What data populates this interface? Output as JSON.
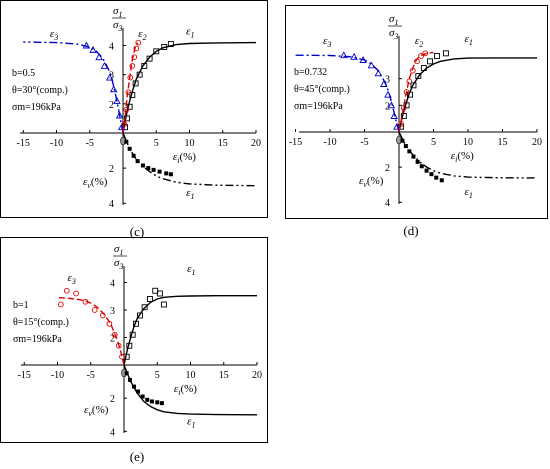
{
  "panels": [
    {
      "caption": "(c)",
      "annotation": [
        "b=0.5",
        "θ=30°(comp.)",
        "σm=196kPa"
      ],
      "eps1_label": "ε1",
      "eps2_label": "ε2",
      "eps3_label": "ε3",
      "epsv_axis_label": "εv(%)",
      "epsv_curve_label": "ε1",
      "y_axis_label_top": "σ1",
      "y_axis_label_bottom": "σ3",
      "x_axis_label": "εi(%)"
    },
    {
      "caption": "(d)",
      "annotation": [
        "b=0.732",
        "θ=45°(comp.)",
        "σm=196kPa"
      ],
      "eps1_label": "ε1",
      "eps2_label": "ε2",
      "eps3_label": "ε3",
      "epsv_axis_label": "εv(%)",
      "epsv_curve_label": "ε1",
      "y_axis_label_top": "σ1",
      "y_axis_label_bottom": "σ3",
      "x_axis_label": "εi(%)"
    },
    {
      "caption": "(e)",
      "annotation": [
        "b=1",
        "θ=15°(comp.)",
        "σm=196kPa"
      ],
      "eps1_label": "ε1",
      "eps2_label": "",
      "eps3_label": "ε3",
      "epsv_axis_label": "εv(%)",
      "epsv_curve_label": "ε1",
      "y_axis_label_top": "σ1",
      "y_axis_label_bottom": "σ3",
      "x_axis_label": "εi(%)"
    }
  ],
  "chart_data": [
    {
      "type": "line",
      "caption": "(c)",
      "x_ticks": [
        -15,
        -10,
        -5,
        0,
        5,
        10,
        15,
        20
      ],
      "y_ticks_upper": [
        2,
        3,
        4
      ],
      "y_ticks_lower": [
        2,
        4
      ],
      "xlim": [
        -15,
        20
      ],
      "ylim_stress": [
        1,
        4.5
      ],
      "ylim_volumetric": [
        0,
        4
      ],
      "series": [
        {
          "name": "ε1",
          "kind": "fitted-curve",
          "color": "#000000",
          "dash": "solid",
          "axis": "stress",
          "x": [
            0,
            0.5,
            1,
            1.5,
            2,
            3,
            4,
            5,
            6,
            8,
            10,
            14,
            20
          ],
          "y": [
            1,
            1.6,
            2.1,
            2.5,
            2.85,
            3.3,
            3.6,
            3.8,
            3.92,
            4.03,
            4.07,
            4.09,
            4.1
          ]
        },
        {
          "name": "",
          "kind": "data-open-square",
          "color": "#000000",
          "axis": "stress",
          "x": [
            0.3,
            0.6,
            1,
            1.4,
            1.9,
            2.5,
            3.2,
            4,
            5,
            6.2,
            7.2
          ],
          "y": [
            1.2,
            1.5,
            1.9,
            2.3,
            2.7,
            3.0,
            3.3,
            3.55,
            3.8,
            3.95,
            4.05
          ]
        },
        {
          "name": "ε3",
          "kind": "fitted-curve",
          "color": "#0000cc",
          "dash": "dash-dot",
          "axis": "stress",
          "x": [
            0,
            -0.5,
            -1,
            -1.5,
            -2,
            -3,
            -4,
            -5,
            -7,
            -10,
            -15
          ],
          "y": [
            1,
            1.6,
            2.2,
            2.7,
            3.1,
            3.55,
            3.8,
            3.95,
            4.05,
            4.1,
            4.12
          ]
        },
        {
          "name": "",
          "kind": "data-open-triangle",
          "color": "#0000cc",
          "axis": "stress",
          "x": [
            -0.2,
            -0.5,
            -0.9,
            -1.4,
            -2,
            -2.8,
            -3.6,
            -4.5,
            -5.5
          ],
          "y": [
            1.2,
            1.6,
            2.1,
            2.5,
            2.9,
            3.3,
            3.6,
            3.85,
            4.0
          ]
        },
        {
          "name": "ε2",
          "kind": "fitted-curve",
          "color": "#dd0000",
          "dash": "dashed",
          "axis": "stress",
          "x": [
            0,
            0.3,
            0.6,
            1,
            1.4,
            1.8,
            2.2
          ],
          "y": [
            1,
            1.5,
            2.2,
            2.9,
            3.5,
            3.9,
            4.1
          ]
        },
        {
          "name": "",
          "kind": "data-open-circle",
          "color": "#dd0000",
          "axis": "stress",
          "x": [
            0.2,
            0.5,
            0.8,
            1.1,
            1.4,
            1.7,
            2.0,
            2.3
          ],
          "y": [
            1.3,
            1.8,
            2.4,
            2.9,
            3.3,
            3.6,
            3.9,
            4.1
          ]
        },
        {
          "name": "ε1",
          "kind": "fitted-curve",
          "color": "#000000",
          "dash": "dash-dot-dot",
          "axis": "volumetric",
          "x": [
            0,
            1,
            2,
            3,
            4,
            5,
            6,
            8,
            10,
            14,
            20
          ],
          "y": [
            0,
            0.9,
            1.5,
            1.9,
            2.2,
            2.45,
            2.6,
            2.8,
            2.9,
            2.97,
            3.0
          ]
        },
        {
          "name": "",
          "kind": "data-filled-square",
          "color": "#000000",
          "axis": "volumetric",
          "x": [
            0.5,
            1,
            1.6,
            2.2,
            3,
            3.8,
            4.6,
            5.5,
            6.5,
            7.2
          ],
          "y": [
            0.5,
            0.9,
            1.3,
            1.6,
            1.85,
            2.0,
            2.1,
            2.2,
            2.3,
            2.35
          ]
        }
      ]
    },
    {
      "type": "line",
      "caption": "(d)",
      "x_ticks": [
        -15,
        -10,
        -5,
        0,
        5,
        10,
        15,
        20
      ],
      "y_ticks_upper": [
        2,
        3
      ],
      "y_ticks_lower": [
        2,
        4
      ],
      "xlim": [
        -15,
        20
      ],
      "ylim_stress": [
        1,
        4.5
      ],
      "ylim_volumetric": [
        0,
        4
      ],
      "series": [
        {
          "name": "ε1",
          "kind": "fitted-curve",
          "color": "#000000",
          "dash": "solid",
          "axis": "stress",
          "x": [
            0,
            0.5,
            1,
            1.5,
            2,
            3,
            4,
            5,
            6,
            8,
            10,
            14,
            20
          ],
          "y": [
            1,
            1.6,
            2.05,
            2.45,
            2.75,
            3.15,
            3.4,
            3.55,
            3.65,
            3.74,
            3.77,
            3.78,
            3.78
          ]
        },
        {
          "name": "",
          "kind": "data-open-square",
          "color": "#000000",
          "axis": "stress",
          "x": [
            0.3,
            0.7,
            1.1,
            1.6,
            2.1,
            2.8,
            3.6,
            4.5,
            5.5,
            6.8
          ],
          "y": [
            1.2,
            1.6,
            2.0,
            2.4,
            2.75,
            3.1,
            3.4,
            3.65,
            3.85,
            3.95
          ]
        },
        {
          "name": "ε3",
          "kind": "fitted-curve",
          "color": "#0000cc",
          "dash": "dash-dot",
          "axis": "stress",
          "x": [
            0,
            -0.5,
            -1,
            -1.5,
            -2,
            -3,
            -4,
            -5,
            -7,
            -10,
            -15
          ],
          "y": [
            1,
            1.5,
            2.05,
            2.5,
            2.85,
            3.3,
            3.55,
            3.7,
            3.82,
            3.87,
            3.88
          ]
        },
        {
          "name": "",
          "kind": "data-open-triangle",
          "color": "#0000cc",
          "axis": "stress",
          "x": [
            -0.3,
            -0.7,
            -1.1,
            -1.6,
            -2.2,
            -3,
            -4,
            -5.2,
            -6.5,
            -8
          ],
          "y": [
            1.2,
            1.6,
            2.0,
            2.4,
            2.8,
            3.2,
            3.5,
            3.7,
            3.82,
            3.88
          ]
        },
        {
          "name": "ε2",
          "kind": "fitted-curve",
          "color": "#dd0000",
          "dash": "dashed",
          "axis": "stress",
          "x": [
            0,
            0.5,
            1,
            1.5,
            2,
            2.5,
            3,
            4,
            5
          ],
          "y": [
            1,
            1.7,
            2.4,
            3.0,
            3.4,
            3.7,
            3.85,
            3.95,
            3.98
          ]
        },
        {
          "name": "",
          "kind": "data-open-circle",
          "color": "#dd0000",
          "axis": "stress",
          "x": [
            0.3,
            0.7,
            1.1,
            1.5,
            2,
            2.6,
            3.2,
            3.8
          ],
          "y": [
            1.3,
            1.9,
            2.5,
            2.9,
            3.3,
            3.65,
            3.85,
            3.95
          ]
        },
        {
          "name": "ε1",
          "kind": "fitted-curve",
          "color": "#000000",
          "dash": "dash-dot-dot",
          "axis": "volumetric",
          "x": [
            0,
            1,
            2,
            3,
            4,
            5,
            6,
            8,
            10,
            14,
            20
          ],
          "y": [
            0,
            0.8,
            1.3,
            1.7,
            2.0,
            2.2,
            2.35,
            2.5,
            2.57,
            2.6,
            2.62
          ]
        },
        {
          "name": "",
          "kind": "data-filled-square",
          "color": "#000000",
          "axis": "volumetric",
          "x": [
            0.5,
            1,
            1.5,
            2.1,
            2.7,
            3.3,
            4,
            4.7,
            5.4,
            6.2
          ],
          "y": [
            0.5,
            0.8,
            1.1,
            1.4,
            1.7,
            1.95,
            2.2,
            2.4,
            2.6,
            2.75
          ]
        }
      ]
    },
    {
      "type": "line",
      "caption": "(e)",
      "x_ticks": [
        -15,
        -10,
        -5,
        0,
        5,
        10,
        15,
        20
      ],
      "y_ticks_upper": [
        2,
        3,
        4
      ],
      "y_ticks_lower": [
        2,
        4
      ],
      "xlim": [
        -15,
        20
      ],
      "ylim_stress": [
        1,
        4.5
      ],
      "ylim_volumetric": [
        0,
        4
      ],
      "series": [
        {
          "name": "ε1",
          "kind": "fitted-curve",
          "color": "#000000",
          "dash": "solid",
          "axis": "stress",
          "x": [
            0,
            0.5,
            1,
            1.5,
            2,
            3,
            4,
            5,
            6,
            8,
            10,
            14,
            20
          ],
          "y": [
            1,
            1.55,
            2.0,
            2.4,
            2.7,
            3.05,
            3.28,
            3.4,
            3.46,
            3.5,
            3.51,
            3.52,
            3.52
          ]
        },
        {
          "name": "",
          "kind": "data-open-square",
          "color": "#000000",
          "axis": "stress",
          "x": [
            0.4,
            0.8,
            1.3,
            1.8,
            2.4,
            3.1,
            3.9,
            4.7,
            5.4,
            6.0
          ],
          "y": [
            1.3,
            1.7,
            2.1,
            2.5,
            2.8,
            3.1,
            3.4,
            3.7,
            3.6,
            3.2
          ]
        },
        {
          "name": "ε3",
          "kind": "fitted-curve",
          "color": "#dd0000",
          "dash": "dashed",
          "axis": "stress",
          "x": [
            0,
            -0.5,
            -1,
            -2,
            -3,
            -4,
            -5,
            -6,
            -8,
            -10
          ],
          "y": [
            1,
            1.5,
            1.9,
            2.5,
            2.85,
            3.1,
            3.25,
            3.35,
            3.42,
            3.45
          ]
        },
        {
          "name": "",
          "kind": "data-open-circle",
          "color": "#dd0000",
          "axis": "stress",
          "x": [
            -0.3,
            -0.8,
            -1.4,
            -2.2,
            -3.2,
            -4.4,
            -5.8,
            -7.2,
            -8.6,
            -9.5
          ],
          "y": [
            1.3,
            1.7,
            2.1,
            2.5,
            2.8,
            3.0,
            3.3,
            3.6,
            3.7,
            3.2
          ]
        },
        {
          "name": "ε1",
          "kind": "fitted-curve",
          "color": "#000000",
          "dash": "solid",
          "axis": "volumetric",
          "x": [
            0,
            1,
            2,
            3,
            4,
            5,
            6,
            8,
            10,
            14,
            20
          ],
          "y": [
            0,
            1.0,
            1.7,
            2.2,
            2.5,
            2.7,
            2.82,
            2.92,
            2.96,
            2.99,
            3.0
          ]
        },
        {
          "name": "",
          "kind": "data-filled-square",
          "color": "#000000",
          "axis": "volumetric",
          "x": [
            0.4,
            0.9,
            1.5,
            2.1,
            2.8,
            3.5,
            4.2,
            5,
            5.7
          ],
          "y": [
            0.5,
            0.9,
            1.3,
            1.6,
            1.9,
            2.1,
            2.2,
            2.25,
            2.3
          ]
        }
      ]
    }
  ]
}
